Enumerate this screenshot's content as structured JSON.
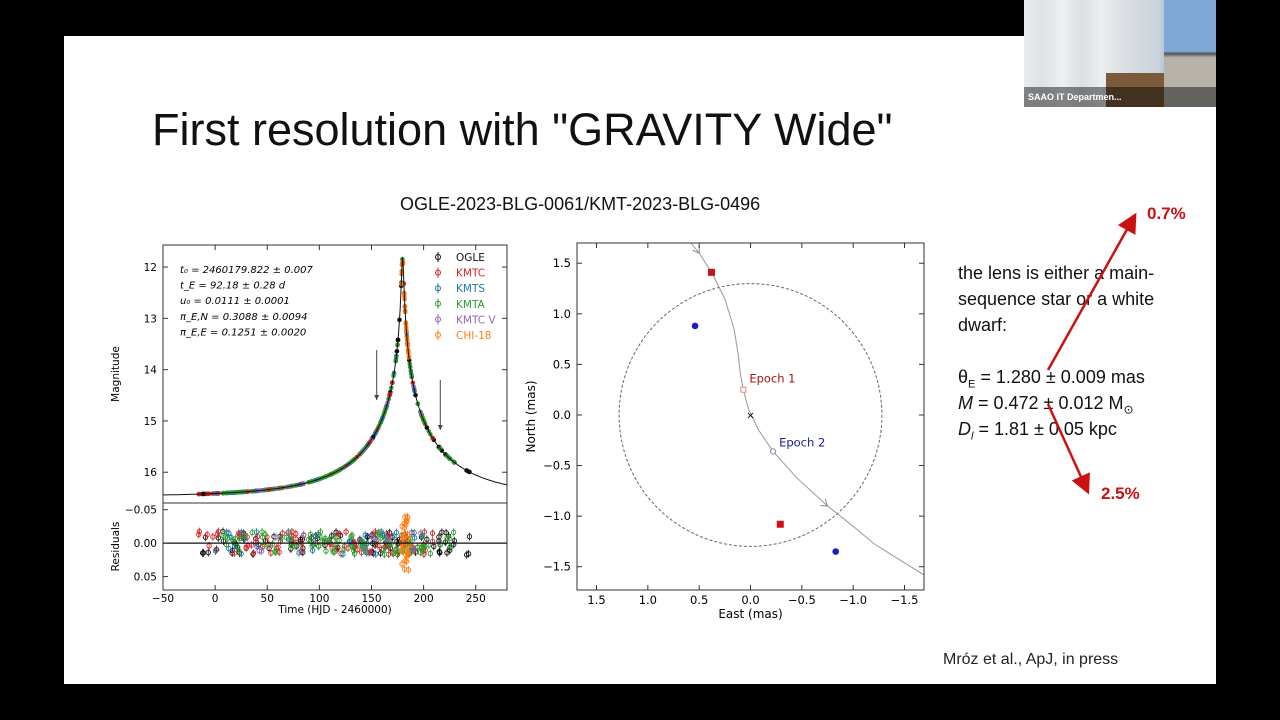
{
  "slide": {
    "title": "First resolution with \"GRAVITY Wide\"",
    "subtitle": "OGLE-2023-BLG-0061/KMT-2023-BLG-0496",
    "text_lines": [
      "the lens is either a main-",
      "sequence star or a white",
      "dwarf:"
    ],
    "theta_e": {
      "sym": "θ",
      "sub": "E",
      "rest": " = 1.280 ± 0.009 mas"
    },
    "mass": {
      "sym": "M",
      "rest": " = 0.472 ± 0.012 M",
      "sub": "⊙"
    },
    "distance": {
      "sym": "D",
      "sub": "l",
      "rest": " = 1.81 ± 0.05 kpc"
    },
    "pct_up": "0.7%",
    "pct_down": "2.5%",
    "citation": "Mróz et al., ApJ, in press",
    "accent_color": "#cc1111"
  },
  "webcam": {
    "label": "SAAO IT Departmen..."
  },
  "chart_data": [
    {
      "type": "scatter",
      "title": "",
      "xlabel": "Time (HJD - 2460000)",
      "ylabel": "Magnitude",
      "residual_ylabel": "Residuals",
      "xlim": [
        -50,
        280
      ],
      "ylim": [
        16.6,
        11.57
      ],
      "residual_ylim": [
        0.07,
        -0.06
      ],
      "xticks": [
        "−50",
        "0",
        "50",
        "100",
        "150",
        "200",
        "250"
      ],
      "xtick_values": [
        -50,
        0,
        50,
        100,
        150,
        200,
        250
      ],
      "yticks": [
        "12",
        "13",
        "14",
        "15",
        "16"
      ],
      "ytick_values": [
        12,
        13,
        14,
        15,
        16
      ],
      "residual_yticks": [
        "−0.05",
        "0.00",
        "0.05"
      ],
      "residual_ytick_values": [
        -0.05,
        0,
        0.05
      ],
      "y_inverted": true,
      "annotations": [
        "t₀ = 2460179.822 ± 0.007",
        "t_E = 92.18 ± 0.28 d",
        "u₀ = 0.0111 ± 0.0001",
        "π_E,N = 0.3088 ± 0.0094",
        "π_E,E = 0.1251 ± 0.0020"
      ],
      "arrow_markers_x": [
        155,
        216
      ],
      "model": {
        "t0": 179.822,
        "tE": 92.18,
        "u0": 0.0111,
        "baseline_mag": 16.47
      },
      "legend_placement": "top-right",
      "series": [
        {
          "name": "OGLE",
          "color": "#111111",
          "x_range": [
            -12,
            245
          ]
        },
        {
          "name": "KMTC",
          "color": "#d62728",
          "x_range": [
            -16,
            210
          ]
        },
        {
          "name": "KMTS",
          "color": "#1f77b4",
          "x_range": [
            0,
            200
          ]
        },
        {
          "name": "KMTA",
          "color": "#2ca02c",
          "x_range": [
            0,
            230
          ]
        },
        {
          "name": "KMTC V",
          "color": "#9467bd",
          "x_range": [
            40,
            205
          ]
        },
        {
          "name": "CHI-18",
          "color": "#ff7f0e",
          "x_range": [
            178,
            186
          ]
        }
      ]
    },
    {
      "type": "scatter",
      "title": "",
      "xlabel": "East (mas)",
      "ylabel": "North (mas)",
      "xlim": [
        1.69,
        -1.69
      ],
      "ylim": [
        -1.73,
        1.7
      ],
      "xticks": [
        "1.5",
        "1.0",
        "0.5",
        "0.0",
        "−0.5",
        "−1.0",
        "−1.5"
      ],
      "xtick_values": [
        1.5,
        1.0,
        0.5,
        0.0,
        -0.5,
        -1.0,
        -1.5
      ],
      "yticks": [
        "1.5",
        "1.0",
        "0.5",
        "0.0",
        "−0.5",
        "−1.0",
        "−1.5"
      ],
      "ytick_values": [
        1.5,
        1.0,
        0.5,
        0.0,
        -0.5,
        -1.0,
        -1.5
      ],
      "einstein_ring_radius": 1.28,
      "lens": [
        0,
        0
      ],
      "images_epoch1": {
        "color": "#cc1111",
        "points": [
          [
            0.38,
            1.41
          ],
          [
            -0.29,
            -1.08
          ]
        ]
      },
      "images_epoch2": {
        "color": "#1a1acc",
        "points": [
          [
            0.54,
            0.88
          ],
          [
            -0.83,
            -1.35
          ]
        ]
      },
      "epoch_labels": [
        {
          "text": "Epoch 1",
          "color": "#aa1111",
          "source": [
            0.07,
            0.25
          ]
        },
        {
          "text": "Epoch 2",
          "color": "#1a1a99",
          "source": [
            -0.22,
            -0.36
          ]
        }
      ],
      "trajectory": [
        [
          0.62,
          1.75
        ],
        [
          0.5,
          1.6
        ],
        [
          0.38,
          1.41
        ],
        [
          0.25,
          1.15
        ],
        [
          0.16,
          0.85
        ],
        [
          0.12,
          0.6
        ],
        [
          0.1,
          0.42
        ],
        [
          0.07,
          0.25
        ],
        [
          0.02,
          0.06
        ],
        [
          -0.08,
          -0.15
        ],
        [
          -0.22,
          -0.36
        ],
        [
          -0.45,
          -0.62
        ],
        [
          -0.75,
          -0.9
        ],
        [
          -1.0,
          -1.1
        ],
        [
          -1.2,
          -1.27
        ],
        [
          -1.45,
          -1.43
        ],
        [
          -1.72,
          -1.6
        ]
      ]
    }
  ]
}
